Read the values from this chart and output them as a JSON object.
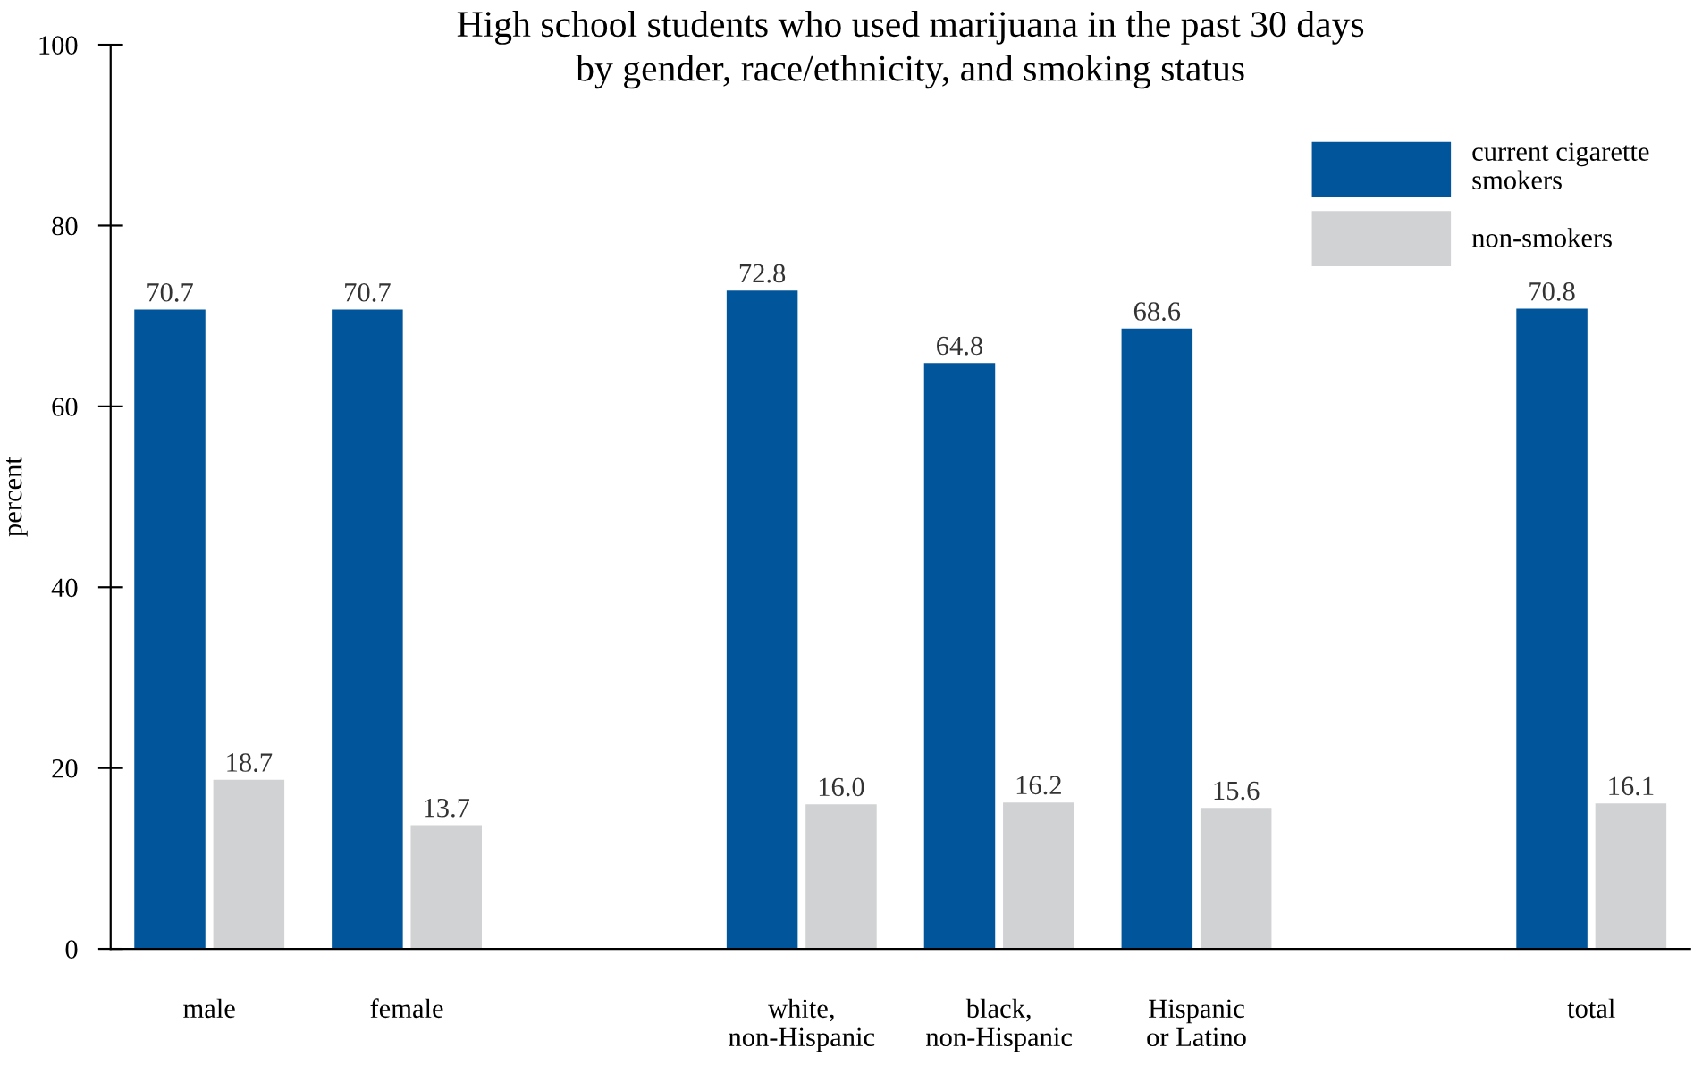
{
  "chart_data": {
    "type": "bar",
    "title": "High school students who used marijuana in the past 30 days\nby gender, race/ethnicity, and smoking status",
    "ylabel": "percent",
    "categories": [
      "male",
      "female",
      null,
      "white,\nnon-Hispanic",
      "black,\nnon-Hispanic",
      "Hispanic\nor Latino",
      null,
      "total"
    ],
    "series": [
      {
        "name": "current cigarette\nsmokers",
        "color": "#00559b",
        "values": [
          70.7,
          70.7,
          null,
          72.8,
          64.8,
          68.6,
          null,
          70.8
        ],
        "value_labels": [
          "70.7",
          "70.7",
          null,
          "72.8",
          "64.8",
          "68.6",
          null,
          "70.8"
        ]
      },
      {
        "name": "non-smokers",
        "color": "#d1d2d4",
        "values": [
          18.7,
          13.7,
          null,
          16.0,
          16.2,
          15.6,
          null,
          16.1
        ],
        "value_labels": [
          "18.7",
          "13.7",
          null,
          "16.0",
          "16.2",
          "15.6",
          null,
          "16.1"
        ]
      }
    ],
    "ylim": [
      0,
      100
    ],
    "yticks": [
      0,
      20,
      40,
      60,
      80,
      100
    ],
    "grid": false,
    "legend": "top right"
  }
}
